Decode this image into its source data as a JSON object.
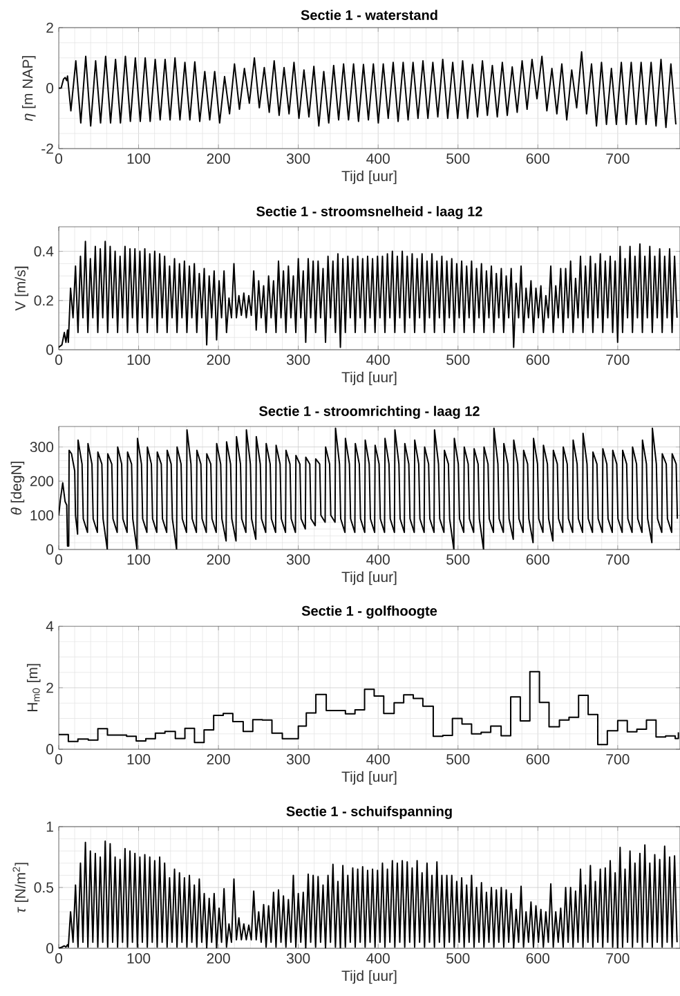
{
  "chart_data": [
    {
      "type": "line",
      "title": "Sectie 1 - waterstand",
      "xlabel": "Tijd [uur]",
      "ylabel": "*η* [m NAP]",
      "color": "#000000",
      "grid": true,
      "xlim": [
        0,
        778
      ],
      "ylim": [
        -2,
        2
      ],
      "xticks": [
        0,
        100,
        200,
        300,
        400,
        500,
        600,
        700
      ],
      "yticks": [
        -2,
        0,
        2
      ],
      "x": [
        0,
        3,
        6,
        8,
        10,
        11,
        15.2,
        21.4,
        27.6,
        33.8,
        40.0,
        46.2,
        52.4,
        58.7,
        64.9,
        71.1,
        77.3,
        83.5,
        89.7,
        95.9,
        102.1,
        108.3,
        114.5,
        120.8,
        127.0,
        133.2,
        139.4,
        145.6,
        151.8,
        158.0,
        164.2,
        170.4,
        176.6,
        182.9,
        189.1,
        195.3,
        201.5,
        207.7,
        213.9,
        220.1,
        226.3,
        232.5,
        238.7,
        245.0,
        251.2,
        257.4,
        263.6,
        269.8,
        276.0,
        282.2,
        288.4,
        294.6,
        300.8,
        307.1,
        313.3,
        319.5,
        325.7,
        331.9,
        338.1,
        344.3,
        350.5,
        356.7,
        362.9,
        369.2,
        375.4,
        381.6,
        387.8,
        394.0,
        400.2,
        406.4,
        412.6,
        418.8,
        425.0,
        431.3,
        437.5,
        443.7,
        449.9,
        456.1,
        462.3,
        468.5,
        474.7,
        480.9,
        487.1,
        493.4,
        499.6,
        505.8,
        512.0,
        518.2,
        524.4,
        530.6,
        536.8,
        543.0,
        549.2,
        555.5,
        561.7,
        567.9,
        574.1,
        580.3,
        586.5,
        592.7,
        598.9,
        605.1,
        611.3,
        617.6,
        623.8,
        630.0,
        636.2,
        642.4,
        648.6,
        654.8,
        661.0,
        667.2,
        673.4,
        679.7,
        685.9,
        692.1,
        698.3,
        704.5,
        710.7,
        716.9,
        723.1,
        729.3,
        735.5,
        741.8,
        748.0,
        754.2,
        760.4,
        766.6,
        772.8
      ],
      "values": [
        0,
        0,
        0.3,
        0.35,
        0.25,
        0.4,
        -0.75,
        0.9,
        -1.15,
        1.05,
        -1.25,
        0.9,
        -1.15,
        1.05,
        -1.15,
        0.95,
        -1.15,
        1.05,
        -1.1,
        1.0,
        -1.1,
        1.0,
        -1.1,
        0.95,
        -1.05,
        0.95,
        -1.05,
        1.0,
        -1.05,
        0.85,
        -1.05,
        0.87,
        -1.1,
        0.55,
        -1.05,
        0.55,
        -1.15,
        0.38,
        -0.85,
        0.8,
        -0.7,
        0.65,
        -0.5,
        1.0,
        -0.65,
        0.68,
        -0.8,
        0.9,
        -0.9,
        0.68,
        -0.85,
        0.85,
        -1.0,
        0.6,
        -0.95,
        0.72,
        -1.25,
        0.55,
        -1.15,
        0.75,
        -1.05,
        0.8,
        -1.05,
        0.8,
        -1.1,
        0.78,
        -1.05,
        0.8,
        -1.15,
        0.8,
        -1.0,
        0.85,
        -1.1,
        0.85,
        -1.05,
        0.85,
        -1.0,
        0.9,
        -1.0,
        0.85,
        -0.95,
        0.95,
        -1.0,
        0.85,
        -1.0,
        0.9,
        -1.0,
        0.78,
        -0.95,
        0.9,
        -0.9,
        0.75,
        -0.95,
        0.85,
        -0.9,
        0.7,
        -0.8,
        0.9,
        -0.7,
        0.95,
        -0.35,
        1.05,
        -0.75,
        0.65,
        -0.85,
        0.8,
        -1.05,
        0.6,
        -0.65,
        1.2,
        -0.85,
        0.8,
        -1.25,
        0.85,
        -1.2,
        0.65,
        -1.2,
        0.85,
        -1.2,
        0.85,
        -1.2,
        0.85,
        -1.2,
        0.85,
        -1.25,
        0.95,
        -1.3,
        0.8,
        -1.2
      ]
    },
    {
      "type": "line",
      "title": "Sectie 1 - stroomsnelheid - laag 12",
      "xlabel": "Tijd [uur]",
      "ylabel": "V [m/s]",
      "color": "#000000",
      "grid": true,
      "xlim": [
        0,
        778
      ],
      "ylim": [
        0,
        0.5
      ],
      "xticks": [
        0,
        100,
        200,
        300,
        400,
        500,
        600,
        700
      ],
      "yticks": [
        0,
        0.2,
        0.4
      ],
      "x": [
        0,
        4,
        7,
        9,
        11,
        12,
        14.8,
        17.9,
        21.0,
        24.1,
        27.2,
        30.3,
        33.4,
        36.5,
        39.6,
        42.7,
        45.8,
        48.9,
        52.0,
        55.1,
        58.2,
        61.3,
        64.4,
        67.5,
        70.6,
        73.7,
        76.8,
        79.9,
        83.0,
        86.1,
        89.2,
        92.3,
        95.4,
        98.5,
        101.6,
        104.7,
        107.8,
        110.9,
        114.0,
        117.1,
        120.2,
        123.3,
        126.4,
        129.5,
        132.6,
        135.7,
        138.8,
        141.9,
        145.0,
        148.1,
        151.2,
        154.3,
        157.4,
        160.5,
        163.6,
        166.7,
        169.8,
        172.9,
        176.0,
        179.1,
        182.2,
        185.3,
        188.4,
        191.5,
        194.6,
        197.7,
        200.8,
        203.9,
        207.0,
        210.1,
        213.2,
        216.3,
        219.4,
        222.5,
        225.6,
        228.7,
        231.8,
        234.9,
        238.0,
        241.1,
        244.2,
        247.3,
        250.4,
        253.5,
        256.6,
        259.7,
        262.8,
        265.9,
        269.0,
        272.1,
        275.2,
        278.3,
        281.4,
        284.5,
        287.6,
        290.7,
        293.8,
        296.9,
        300.0,
        303.1,
        306.2,
        309.3,
        312.4,
        315.5,
        318.6,
        321.7,
        324.8,
        327.9,
        331.0,
        334.1,
        337.2,
        340.3,
        343.4,
        346.5,
        349.6,
        352.7,
        355.8,
        358.9,
        362.0,
        365.1,
        368.2,
        371.3,
        374.4,
        377.5,
        380.6,
        383.7,
        386.8,
        389.9,
        393.0,
        396.1,
        399.2,
        402.3,
        405.4,
        408.5,
        411.6,
        414.7,
        417.8,
        420.9,
        424.0,
        427.1,
        430.2,
        433.3,
        436.4,
        439.5,
        442.6,
        445.7,
        448.8,
        451.9,
        455.0,
        458.1,
        461.2,
        464.3,
        467.4,
        470.5,
        473.6,
        476.7,
        479.8,
        482.9,
        486.0,
        489.1,
        492.2,
        495.3,
        498.4,
        501.5,
        504.6,
        507.7,
        510.8,
        513.9,
        517.0,
        520.1,
        523.2,
        526.3,
        529.4,
        532.5,
        535.6,
        538.7,
        541.8,
        544.9,
        548.0,
        551.1,
        554.2,
        557.3,
        560.4,
        563.5,
        566.6,
        569.7,
        572.8,
        575.9,
        579.0,
        582.1,
        585.2,
        588.3,
        591.4,
        594.5,
        597.6,
        600.7,
        603.8,
        606.9,
        610.0,
        613.1,
        616.2,
        619.3,
        622.4,
        625.5,
        628.6,
        631.7,
        634.8,
        637.9,
        641.0,
        644.1,
        647.2,
        650.3,
        653.4,
        656.5,
        659.6,
        662.7,
        665.8,
        668.9,
        672.0,
        675.1,
        678.2,
        681.3,
        684.4,
        687.5,
        690.6,
        693.7,
        696.8,
        699.9,
        703.0,
        706.1,
        709.2,
        712.3,
        715.4,
        718.5,
        721.6,
        724.7,
        727.8,
        730.9,
        734.0,
        737.1,
        740.2,
        743.3,
        746.4,
        749.5,
        752.6,
        755.7,
        758.8,
        761.9,
        765.0,
        768.1,
        771.2,
        774.3
      ],
      "values": [
        0.01,
        0.02,
        0.07,
        0.03,
        0.08,
        0.03,
        0.25,
        0.13,
        0.34,
        0.07,
        0.38,
        0.13,
        0.44,
        0.07,
        0.37,
        0.13,
        0.42,
        0.07,
        0.41,
        0.13,
        0.44,
        0.07,
        0.42,
        0.13,
        0.4,
        0.07,
        0.38,
        0.13,
        0.42,
        0.07,
        0.41,
        0.13,
        0.41,
        0.07,
        0.4,
        0.13,
        0.41,
        0.07,
        0.39,
        0.13,
        0.4,
        0.07,
        0.39,
        0.13,
        0.38,
        0.07,
        0.34,
        0.13,
        0.37,
        0.07,
        0.35,
        0.13,
        0.36,
        0.07,
        0.34,
        0.13,
        0.35,
        0.07,
        0.31,
        0.13,
        0.33,
        0.02,
        0.3,
        0.13,
        0.32,
        0.04,
        0.28,
        0.13,
        0.32,
        0.07,
        0.21,
        0.13,
        0.35,
        0.13,
        0.22,
        0.14,
        0.23,
        0.13,
        0.22,
        0.14,
        0.32,
        0.08,
        0.28,
        0.13,
        0.26,
        0.07,
        0.3,
        0.13,
        0.28,
        0.07,
        0.36,
        0.13,
        0.32,
        0.07,
        0.34,
        0.13,
        0.3,
        0.07,
        0.37,
        0.13,
        0.32,
        0.03,
        0.37,
        0.13,
        0.36,
        0.07,
        0.36,
        0.13,
        0.33,
        0.03,
        0.38,
        0.13,
        0.36,
        0.07,
        0.39,
        0.01,
        0.37,
        0.07,
        0.38,
        0.13,
        0.37,
        0.07,
        0.38,
        0.13,
        0.37,
        0.07,
        0.38,
        0.13,
        0.37,
        0.07,
        0.38,
        0.13,
        0.38,
        0.07,
        0.39,
        0.13,
        0.4,
        0.07,
        0.38,
        0.13,
        0.4,
        0.07,
        0.38,
        0.13,
        0.39,
        0.07,
        0.37,
        0.13,
        0.39,
        0.07,
        0.36,
        0.13,
        0.39,
        0.07,
        0.36,
        0.13,
        0.38,
        0.07,
        0.36,
        0.13,
        0.37,
        0.07,
        0.35,
        0.13,
        0.36,
        0.07,
        0.34,
        0.13,
        0.36,
        0.07,
        0.33,
        0.13,
        0.35,
        0.07,
        0.32,
        0.13,
        0.34,
        0.07,
        0.31,
        0.13,
        0.33,
        0.07,
        0.3,
        0.13,
        0.33,
        0.01,
        0.27,
        0.13,
        0.34,
        0.07,
        0.25,
        0.13,
        0.28,
        0.07,
        0.25,
        0.13,
        0.26,
        0.07,
        0.22,
        0.13,
        0.34,
        0.07,
        0.26,
        0.13,
        0.33,
        0.07,
        0.33,
        0.13,
        0.36,
        0.07,
        0.29,
        0.13,
        0.38,
        0.07,
        0.34,
        0.13,
        0.38,
        0.07,
        0.35,
        0.13,
        0.39,
        0.07,
        0.36,
        0.13,
        0.38,
        0.07,
        0.36,
        0.03,
        0.42,
        0.07,
        0.37,
        0.13,
        0.42,
        0.07,
        0.38,
        0.13,
        0.43,
        0.07,
        0.38,
        0.13,
        0.42,
        0.07,
        0.38,
        0.13,
        0.41,
        0.07,
        0.38,
        0.13,
        0.41,
        0.07,
        0.38,
        0.13
      ]
    },
    {
      "type": "line",
      "title": "Sectie 1 - stroomrichting - laag 12",
      "xlabel": "Tijd [uur]",
      "ylabel": "*θ* [degN]",
      "color": "#000000",
      "grid": true,
      "xlim": [
        0,
        778
      ],
      "ylim": [
        0,
        360
      ],
      "xticks": [
        0,
        100,
        200,
        300,
        400,
        500,
        600,
        700
      ],
      "yticks": [
        0,
        100,
        200,
        300
      ],
      "x": [
        0,
        2,
        5,
        8,
        10,
        11,
        12.5,
        13,
        16,
        20,
        21,
        23.6,
        24.2,
        29.2,
        30.7,
        36.0,
        36.6,
        41.6,
        43.1,
        48.4,
        49.0,
        54.0,
        55.5,
        60.8,
        61.4,
        66.4,
        67.9,
        73.2,
        73.8,
        78.8,
        80.3,
        85.6,
        86.2,
        91.2,
        92.7,
        98.0,
        98.6,
        103.6,
        105.1,
        110.4,
        111.0,
        116.0,
        117.5,
        122.8,
        123.4,
        128.4,
        129.9,
        135.2,
        135.8,
        140.8,
        142.3,
        147.6,
        148.2,
        153.2,
        154.7,
        160.0,
        160.6,
        165.6,
        167.1,
        172.4,
        173.0,
        178.0,
        179.5,
        184.8,
        185.4,
        190.4,
        191.9,
        197.2,
        197.8,
        202.8,
        204.3,
        209.6,
        210.2,
        215.2,
        216.7,
        222.0,
        222.6,
        227.6,
        229.1,
        234.4,
        235.0,
        240.0,
        241.5,
        246.8,
        247.4,
        252.4,
        253.9,
        259.2,
        259.8,
        264.8,
        266.3,
        271.6,
        272.2,
        277.2,
        278.7,
        284.0,
        284.6,
        289.6,
        291.1,
        296.4,
        297.0,
        302.0,
        303.5,
        308.8,
        309.4,
        314.4,
        315.9,
        321.2,
        321.8,
        326.8,
        328.3,
        333.6,
        334.2,
        339.2,
        340.7,
        346.0,
        346.6,
        351.6,
        353.1,
        358.4,
        359.0,
        364.0,
        365.5,
        370.8,
        371.4,
        376.4,
        377.9,
        383.2,
        383.8,
        388.8,
        390.3,
        395.6,
        396.2,
        401.2,
        402.7,
        408.0,
        408.6,
        413.6,
        415.1,
        420.4,
        421.0,
        426.0,
        427.5,
        432.8,
        433.4,
        438.4,
        439.9,
        445.2,
        445.8,
        450.8,
        452.3,
        457.6,
        458.2,
        463.2,
        464.7,
        470.0,
        470.6,
        475.6,
        477.1,
        482.4,
        483.0,
        488.0,
        489.5,
        494.8,
        495.4,
        500.4,
        501.9,
        507.2,
        507.8,
        512.8,
        514.3,
        519.6,
        520.2,
        525.2,
        526.7,
        532.0,
        532.6,
        537.6,
        539.1,
        544.4,
        545.0,
        550.0,
        551.5,
        556.8,
        557.4,
        562.4,
        563.9,
        569.2,
        569.8,
        574.8,
        576.3,
        581.6,
        582.2,
        587.2,
        588.7,
        594.0,
        594.6,
        599.6,
        601.1,
        606.4,
        607.0,
        612.0,
        613.5,
        618.8,
        619.4,
        624.4,
        625.9,
        631.2,
        631.8,
        636.8,
        638.3,
        643.6,
        644.2,
        649.2,
        650.7,
        656.0,
        656.6,
        661.6,
        663.1,
        668.4,
        669.0,
        674.0,
        675.5,
        680.8,
        681.4,
        686.4,
        687.9,
        693.2,
        693.8,
        698.8,
        700.3,
        705.6,
        706.2,
        711.2,
        712.7,
        718.0,
        718.6,
        723.6,
        725.1,
        730.4,
        731.0,
        736.0,
        737.5,
        742.8,
        743.4,
        748.4,
        749.9,
        755.2,
        755.8,
        760.8,
        762.3,
        767.6,
        768.2,
        773.2,
        774.7
      ],
      "values": [
        100,
        145,
        195,
        140,
        130,
        10,
        10,
        290,
        280,
        230,
        100,
        45,
        320,
        250,
        90,
        50,
        310,
        250,
        90,
        50,
        285,
        250,
        90,
        0,
        280,
        250,
        90,
        50,
        300,
        250,
        90,
        50,
        285,
        250,
        90,
        0,
        325,
        250,
        90,
        50,
        300,
        250,
        90,
        50,
        285,
        250,
        90,
        50,
        290,
        250,
        90,
        0,
        300,
        250,
        90,
        50,
        350,
        250,
        90,
        50,
        290,
        250,
        90,
        50,
        280,
        250,
        90,
        50,
        310,
        250,
        90,
        25,
        315,
        250,
        90,
        25,
        330,
        250,
        90,
        50,
        350,
        250,
        90,
        30,
        330,
        250,
        90,
        50,
        310,
        250,
        90,
        50,
        305,
        250,
        90,
        50,
        290,
        250,
        90,
        50,
        275,
        250,
        90,
        60,
        270,
        250,
        90,
        70,
        265,
        250,
        100,
        80,
        300,
        250,
        100,
        80,
        355,
        250,
        90,
        50,
        325,
        250,
        90,
        50,
        310,
        250,
        90,
        50,
        320,
        250,
        90,
        50,
        305,
        250,
        90,
        50,
        325,
        250,
        90,
        50,
        350,
        250,
        90,
        50,
        310,
        250,
        90,
        50,
        320,
        250,
        90,
        50,
        300,
        250,
        90,
        50,
        350,
        250,
        90,
        50,
        290,
        250,
        90,
        0,
        325,
        250,
        90,
        50,
        300,
        250,
        90,
        50,
        295,
        250,
        90,
        0,
        300,
        250,
        90,
        50,
        355,
        250,
        90,
        50,
        310,
        250,
        90,
        30,
        320,
        250,
        90,
        50,
        290,
        250,
        90,
        20,
        325,
        250,
        90,
        50,
        305,
        250,
        90,
        25,
        290,
        250,
        90,
        50,
        300,
        250,
        90,
        50,
        320,
        250,
        90,
        50,
        340,
        250,
        90,
        50,
        285,
        250,
        90,
        50,
        295,
        250,
        90,
        50,
        290,
        250,
        90,
        50,
        290,
        250,
        90,
        50,
        300,
        250,
        90,
        50,
        320,
        250,
        90,
        20,
        355,
        250,
        90,
        50,
        280,
        250,
        90,
        50,
        280,
        250,
        90
      ]
    },
    {
      "type": "step",
      "title": "Sectie 1 - golfhoogte",
      "xlabel": "Tijd [uur]",
      "ylabel": "H$_{m0}$ [m]",
      "color": "#000000",
      "grid": true,
      "xlim": [
        0,
        778
      ],
      "ylim": [
        0,
        4
      ],
      "xticks": [
        0,
        100,
        200,
        300,
        400,
        500,
        600,
        700
      ],
      "yticks": [
        0,
        2,
        4
      ],
      "x": [
        0,
        12,
        24,
        37,
        49,
        61,
        85,
        97,
        109,
        121,
        133,
        146,
        158,
        170,
        182,
        194,
        206,
        218,
        231,
        243,
        255,
        267,
        280,
        300,
        310,
        322,
        335,
        359,
        371,
        383,
        395,
        407,
        420,
        432,
        444,
        456,
        469,
        481,
        493,
        505,
        517,
        529,
        541,
        554,
        566,
        578,
        590,
        602,
        614,
        627,
        639,
        651,
        663,
        675,
        687,
        700,
        712,
        724,
        736,
        748,
        760,
        772,
        776
      ],
      "values": [
        0.48,
        0.25,
        0.33,
        0.3,
        0.67,
        0.46,
        0.42,
        0.27,
        0.34,
        0.52,
        0.58,
        0.35,
        0.68,
        0.22,
        0.63,
        1.1,
        1.16,
        0.9,
        0.58,
        0.96,
        0.95,
        0.52,
        0.34,
        0.75,
        1.18,
        1.78,
        1.26,
        1.15,
        1.28,
        1.95,
        1.73,
        1.16,
        1.51,
        1.77,
        1.65,
        1.4,
        0.42,
        0.45,
        1.0,
        0.82,
        0.5,
        0.55,
        0.75,
        0.44,
        1.7,
        0.92,
        2.52,
        1.52,
        0.73,
        0.95,
        1.04,
        1.75,
        1.13,
        0.15,
        0.6,
        0.93,
        0.57,
        0.65,
        0.95,
        0.4,
        0.43,
        0.35,
        0.55
      ]
    },
    {
      "type": "line",
      "title": "Sectie 1 - schuifspanning",
      "xlabel": "Tijd [uur]",
      "ylabel": "*τ* [N/m$^{2}$]",
      "color": "#000000",
      "grid": true,
      "xlim": [
        0,
        778
      ],
      "ylim": [
        0,
        1
      ],
      "xticks": [
        0,
        100,
        200,
        300,
        400,
        500,
        600,
        700
      ],
      "yticks": [
        0,
        0.5,
        1
      ],
      "x": [
        0,
        4,
        7,
        9,
        11,
        12,
        14.8,
        17.9,
        21.0,
        24.1,
        27.2,
        30.3,
        33.4,
        36.5,
        39.6,
        42.7,
        45.8,
        48.9,
        52.0,
        55.1,
        58.2,
        61.3,
        64.4,
        67.5,
        70.6,
        73.7,
        76.8,
        79.9,
        83.0,
        86.1,
        89.2,
        92.3,
        95.4,
        98.5,
        101.6,
        104.7,
        107.8,
        110.9,
        114.0,
        117.1,
        120.2,
        123.3,
        126.4,
        129.5,
        132.6,
        135.7,
        138.8,
        141.9,
        145.0,
        148.1,
        151.2,
        154.3,
        157.4,
        160.5,
        163.6,
        166.7,
        169.8,
        172.9,
        176.0,
        179.1,
        182.2,
        185.3,
        188.4,
        191.5,
        194.6,
        197.7,
        200.8,
        203.9,
        207.0,
        210.1,
        213.2,
        216.3,
        219.4,
        222.5,
        225.6,
        228.7,
        231.8,
        234.9,
        238.0,
        241.1,
        244.2,
        247.3,
        250.4,
        253.5,
        256.6,
        259.7,
        262.8,
        265.9,
        269.0,
        272.1,
        275.2,
        278.3,
        281.4,
        284.5,
        287.6,
        290.7,
        293.8,
        296.9,
        300.0,
        303.1,
        306.2,
        309.3,
        312.4,
        315.5,
        318.6,
        321.7,
        324.8,
        327.9,
        331.0,
        334.1,
        337.2,
        340.3,
        343.4,
        346.5,
        349.6,
        352.7,
        355.8,
        358.9,
        362.0,
        365.1,
        368.2,
        371.3,
        374.4,
        377.5,
        380.6,
        383.7,
        386.8,
        389.9,
        393.0,
        396.1,
        399.2,
        402.3,
        405.4,
        408.5,
        411.6,
        414.7,
        417.8,
        420.9,
        424.0,
        427.1,
        430.2,
        433.3,
        436.4,
        439.5,
        442.6,
        445.7,
        448.8,
        451.9,
        455.0,
        458.1,
        461.2,
        464.3,
        467.4,
        470.5,
        473.6,
        476.7,
        479.8,
        482.9,
        486.0,
        489.1,
        492.2,
        495.3,
        498.4,
        501.5,
        504.6,
        507.7,
        510.8,
        513.9,
        517.0,
        520.1,
        523.2,
        526.3,
        529.4,
        532.5,
        535.6,
        538.7,
        541.8,
        544.9,
        548.0,
        551.1,
        554.2,
        557.3,
        560.4,
        563.5,
        566.6,
        569.7,
        572.8,
        575.9,
        579.0,
        582.1,
        585.2,
        588.3,
        591.4,
        594.5,
        597.6,
        600.7,
        603.8,
        606.9,
        610.0,
        613.1,
        616.2,
        619.3,
        622.4,
        625.5,
        628.6,
        631.7,
        634.8,
        637.9,
        641.0,
        644.1,
        647.2,
        650.3,
        653.4,
        656.5,
        659.6,
        662.7,
        665.8,
        668.9,
        672.0,
        675.1,
        678.2,
        681.3,
        684.4,
        687.5,
        690.6,
        693.7,
        696.8,
        699.9,
        703.0,
        706.1,
        709.2,
        712.3,
        715.4,
        718.5,
        721.6,
        724.7,
        727.8,
        730.9,
        734.0,
        737.1,
        740.2,
        743.3,
        746.4,
        749.5,
        752.6,
        755.7,
        758.8,
        761.9,
        765.0,
        768.1,
        771.2,
        774.3
      ],
      "values": [
        0,
        0.01,
        0.02,
        0.01,
        0.03,
        0.01,
        0.3,
        0.05,
        0.52,
        0.01,
        0.7,
        0.05,
        0.87,
        0.01,
        0.8,
        0.05,
        0.78,
        0.01,
        0.75,
        0.05,
        0.88,
        0.01,
        0.86,
        0.05,
        0.75,
        0.01,
        0.73,
        0.05,
        0.82,
        0.01,
        0.8,
        0.05,
        0.78,
        0.01,
        0.75,
        0.05,
        0.77,
        0.01,
        0.75,
        0.05,
        0.72,
        0.01,
        0.75,
        0.05,
        0.7,
        0.01,
        0.58,
        0.05,
        0.65,
        0.01,
        0.62,
        0.05,
        0.58,
        0.01,
        0.6,
        0.05,
        0.52,
        0.01,
        0.57,
        0.05,
        0.45,
        0,
        0.41,
        0.05,
        0.45,
        0,
        0.33,
        0.05,
        0.49,
        0.01,
        0.2,
        0.05,
        0.57,
        0.07,
        0.25,
        0.07,
        0.2,
        0.07,
        0.19,
        0.07,
        0.47,
        0.07,
        0.3,
        0.05,
        0.36,
        0.01,
        0.35,
        0.05,
        0.46,
        0.01,
        0.48,
        0.05,
        0.43,
        0.01,
        0.4,
        0.05,
        0.6,
        0.01,
        0.45,
        0.05,
        0.46,
        0,
        0.61,
        0.05,
        0.6,
        0.01,
        0.59,
        0.05,
        0.52,
        0,
        0.6,
        0.05,
        0.69,
        0.01,
        0.55,
        0,
        0.68,
        0.01,
        0.6,
        0.05,
        0.66,
        0.01,
        0.65,
        0.05,
        0.67,
        0.01,
        0.64,
        0.05,
        0.65,
        0.01,
        0.64,
        0.05,
        0.7,
        0.01,
        0.65,
        0.05,
        0.72,
        0.01,
        0.7,
        0.05,
        0.72,
        0.01,
        0.71,
        0.05,
        0.66,
        0.01,
        0.72,
        0.05,
        0.62,
        0.01,
        0.7,
        0.05,
        0.6,
        0.01,
        0.71,
        0.05,
        0.6,
        0.01,
        0.6,
        0.05,
        0.6,
        0.01,
        0.55,
        0.05,
        0.58,
        0.01,
        0.52,
        0.05,
        0.6,
        0.01,
        0.5,
        0.05,
        0.54,
        0.01,
        0.46,
        0.05,
        0.5,
        0.01,
        0.48,
        0.05,
        0.5,
        0.01,
        0.48,
        0.05,
        0.45,
        0,
        0.32,
        0.05,
        0.51,
        0.01,
        0.3,
        0.05,
        0.38,
        0.01,
        0.35,
        0.05,
        0.32,
        0.01,
        0.3,
        0.05,
        0.53,
        0.01,
        0.3,
        0.05,
        0.33,
        0.01,
        0.5,
        0.05,
        0.5,
        0.01,
        0.47,
        0.05,
        0.65,
        0.01,
        0.52,
        0.05,
        0.68,
        0.01,
        0.55,
        0.05,
        0.65,
        0.01,
        0.66,
        0.05,
        0.72,
        0.01,
        0.62,
        0,
        0.83,
        0.01,
        0.65,
        0.05,
        0.8,
        0.01,
        0.7,
        0.05,
        0.78,
        0.01,
        0.85,
        0.05,
        0.7,
        0.01,
        0.77,
        0.05,
        0.73,
        0.01,
        0.84,
        0.05,
        0.75,
        0.01,
        0.76,
        0.05
      ]
    }
  ]
}
